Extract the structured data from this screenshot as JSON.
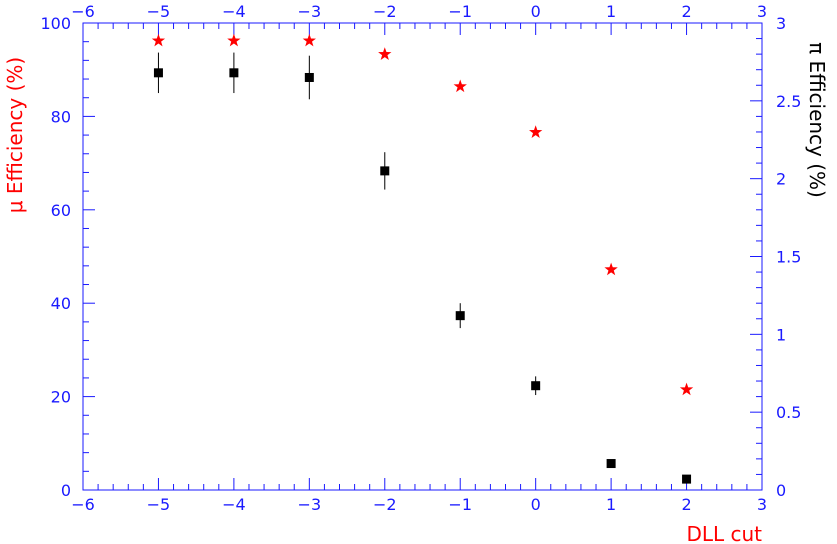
{
  "chart_data": {
    "type": "scatter",
    "xlabel": "DLL cut",
    "ylabel_left": "μ Efficiency (%)",
    "ylabel_right": "π Efficiency (%)",
    "xlim": [
      -6,
      3
    ],
    "ylim_left": [
      0,
      100
    ],
    "ylim_right": [
      0,
      3
    ],
    "x_ticks": [
      -6,
      -5,
      -4,
      -3,
      -2,
      -1,
      0,
      1,
      2,
      3
    ],
    "y_left_ticks": [
      0,
      20,
      40,
      60,
      80,
      100
    ],
    "y_right_ticks": [
      0,
      0.5,
      1,
      1.5,
      2,
      2.5,
      3
    ],
    "grid": false,
    "colors": {
      "axis": "#1a1aff",
      "muon": "#ff0000",
      "pion": "#000000"
    },
    "series": [
      {
        "axis": "left",
        "marker": "star",
        "x": [
          -5,
          -4,
          -3,
          -2,
          -1,
          0,
          1,
          2
        ],
        "y": [
          96.2,
          96.2,
          96.2,
          93.3,
          86.4,
          76.6,
          47.2,
          21.5
        ]
      },
      {
        "axis": "right",
        "marker": "square",
        "x": [
          -5,
          -4,
          -3,
          -2,
          -1,
          0,
          1,
          2
        ],
        "y": [
          2.68,
          2.68,
          2.65,
          2.05,
          1.12,
          0.67,
          0.17,
          0.07
        ],
        "yerr": [
          0.13,
          0.13,
          0.14,
          0.12,
          0.08,
          0.06,
          0.02,
          0.01
        ]
      }
    ]
  }
}
